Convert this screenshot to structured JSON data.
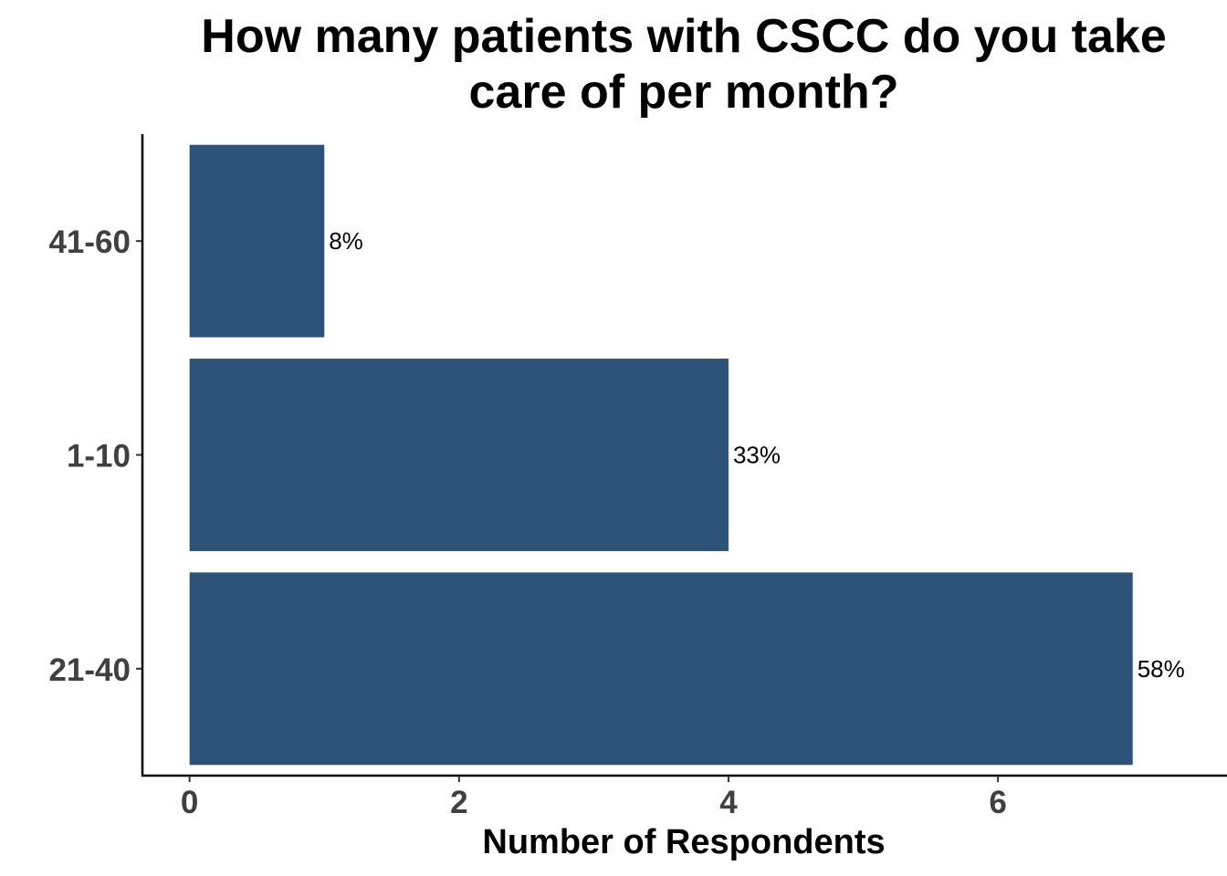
{
  "chart_data": {
    "type": "bar",
    "orientation": "horizontal",
    "title_lines": [
      "How many patients with CSCC do you take",
      "care of per month?"
    ],
    "xlabel": "Number of Respondents",
    "ylabel": "",
    "categories": [
      "41-60",
      "1-10",
      "21-40"
    ],
    "values": [
      1,
      4,
      7
    ],
    "data_labels": [
      "8%",
      "33%",
      "58%"
    ],
    "xlim": [
      -0.35,
      7.7
    ],
    "x_ticks": [
      0,
      2,
      4,
      6
    ],
    "grid": false,
    "legend": "none",
    "bar_color": "#2d5277"
  }
}
